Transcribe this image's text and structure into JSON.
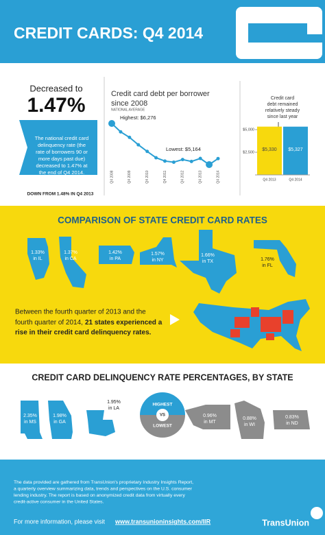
{
  "header": {
    "title": "CREDIT CARDS: Q4 2014"
  },
  "delinquency": {
    "intro": "Decreased to",
    "rate": "1.47%",
    "description": [
      "The national credit card",
      "delinquency rate (the",
      "rate of borrowers 90 or",
      "more days past due)",
      "decreased to 1.47% at",
      "the end of Q4 2014."
    ],
    "footnote": "DOWN FROM 1.48% IN Q4 2013"
  },
  "chart_data": [
    {
      "type": "line",
      "title": [
        "Credit card debt per borrower",
        "since 2008"
      ],
      "subtitle": "NATIONAL AVERAGE",
      "categories": [
        "Q4 2008",
        null,
        "Q4 2009",
        null,
        "Q4 2010",
        null,
        "Q4 2011",
        null,
        "Q4 2012",
        null,
        "Q4 2013",
        null,
        "Q4 2014"
      ],
      "values": [
        6276,
        6050,
        5900,
        5700,
        5520,
        5350,
        5260,
        5230,
        5300,
        5250,
        5330,
        5164,
        5327
      ],
      "color": "#2a9fd4",
      "annotations": [
        "Highest: $6,276",
        "Lowest: $5,164"
      ]
    },
    {
      "type": "bar",
      "annotation": [
        "Credit card",
        "debt remained",
        "relatively steady",
        "since last year"
      ],
      "categories": [
        "Q4 2013",
        "Q4 2014"
      ],
      "values": [
        5330,
        5327
      ],
      "value_labels": [
        "$5,330",
        "$5,327"
      ],
      "colors": [
        "#f7d90d",
        "#2a9fd4"
      ],
      "ylim": [
        0,
        6400
      ],
      "yticks": [
        {
          "value": 2500,
          "label": "$2,500"
        },
        {
          "value": 5000,
          "label": "$5,000"
        }
      ]
    }
  ],
  "comparison": {
    "title": "COMPARISON OF STATE CREDIT CARD RATES",
    "states": [
      {
        "rate": "1.33%",
        "state": "in IL"
      },
      {
        "rate": "1.37%",
        "state": "in CA"
      },
      {
        "rate": "1.42%",
        "state": "in PA"
      },
      {
        "rate": "1.57%",
        "state": "in NY"
      },
      {
        "rate": "1.66%",
        "state": "in TX"
      },
      {
        "rate": "1.76%",
        "state": "in FL"
      }
    ],
    "text": {
      "line1": "Between the fourth quarter of 2013 and the",
      "line2": "fourth quarter of 2014,",
      "line2_bold": "21 states experienced a",
      "line3_bold": "rise in their credit card delinquency rates."
    }
  },
  "percentages": {
    "title": "CREDIT CARD DELINQUENCY RATE PERCENTAGES, BY STATE",
    "highest": [
      {
        "rate": "2.35%",
        "state": "in MS"
      },
      {
        "rate": "1.98%",
        "state": "in GA"
      },
      {
        "rate": "1.95%",
        "state": "in LA"
      }
    ],
    "lowest": [
      {
        "rate": "0.96%",
        "state": "in MT"
      },
      {
        "rate": "0.88%",
        "state": "in WI"
      },
      {
        "rate": "0.83%",
        "state": "in ND"
      }
    ],
    "legend": {
      "top": "HIGHEST",
      "middle": "VS",
      "bottom": "LOWEST"
    }
  },
  "footer": {
    "lines": [
      "The data provided are gathered from TransUnion's proprietary Industry Insights Report,",
      "a quarterly overview summarizing data, trends and perspectives on the U.S. consumer",
      "lending industry. The report is based on anonymized credit data from virtually every",
      "credit-active consumer in the United States."
    ],
    "more": "For more information, please visit",
    "link": "www.transunioninsights.com/IIR",
    "brand": "TransUnion"
  }
}
